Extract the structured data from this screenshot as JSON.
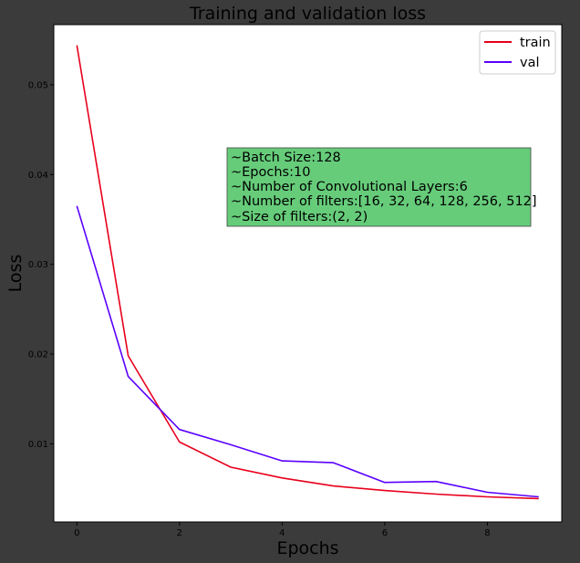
{
  "chart_data": {
    "type": "line",
    "title": "Training and validation loss",
    "xlabel": "Epochs",
    "ylabel": "Loss",
    "x": [
      0,
      1,
      2,
      3,
      4,
      5,
      6,
      7,
      8,
      9
    ],
    "xlim": [
      -0.45,
      9.45
    ],
    "ylim": [
      0.0013,
      0.0567
    ],
    "xticks": [
      0,
      2,
      4,
      6,
      8
    ],
    "yticks": [
      0.01,
      0.02,
      0.03,
      0.04,
      0.05
    ],
    "xtick_labels": [
      "0",
      "2",
      "4",
      "6",
      "8"
    ],
    "ytick_labels": [
      "0.01",
      "0.02",
      "0.03",
      "0.04",
      "0.05"
    ],
    "grid": false,
    "legend_position": "top-right",
    "series": [
      {
        "name": "train",
        "color": "#e8001c",
        "values": [
          0.0544,
          0.0198,
          0.0102,
          0.0074,
          0.0062,
          0.0053,
          0.0048,
          0.0044,
          0.0041,
          0.0039
        ]
      },
      {
        "name": "val",
        "color": "#5a00ff",
        "values": [
          0.0365,
          0.0175,
          0.0116,
          0.0099,
          0.0081,
          0.0079,
          0.0057,
          0.0058,
          0.0046,
          0.0041
        ]
      }
    ],
    "annotation": {
      "lines": [
        "~Batch Size:128",
        "~Epochs:10",
        "~Number of Convolutional Layers:6",
        "~Number of filters:[16, 32, 64, 128, 256, 512]",
        "~Size of filters:(2, 2)"
      ],
      "background": "#66cc7a"
    }
  },
  "colors": {
    "figure_background": "#3b3b3b",
    "plot_background": "#ffffff",
    "text": "#000000"
  }
}
